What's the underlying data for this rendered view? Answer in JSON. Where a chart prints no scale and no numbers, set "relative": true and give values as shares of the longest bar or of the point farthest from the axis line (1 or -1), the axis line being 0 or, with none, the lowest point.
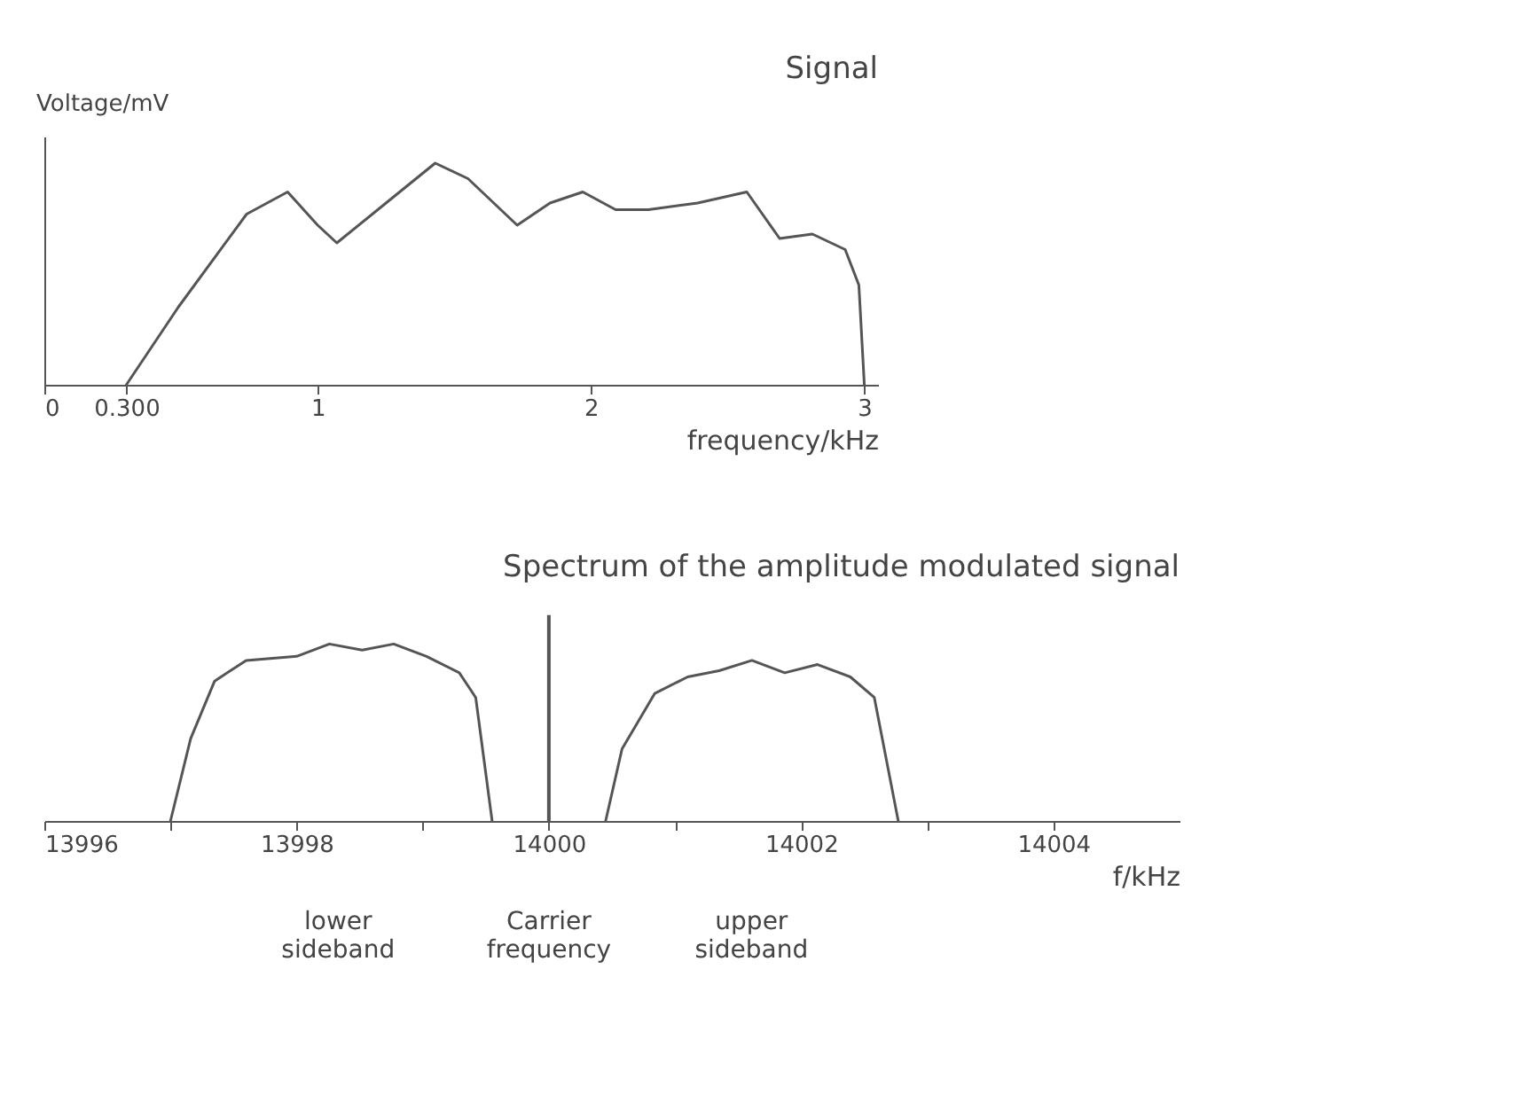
{
  "chart_data": [
    {
      "type": "line",
      "title": "Signal",
      "ylabel": "Voltage/mV",
      "xlabel": "frequency/kHz",
      "relative": true,
      "grid": false,
      "marker": "none",
      "line_style": "solid",
      "xlim": [
        0,
        3.05
      ],
      "xticks": [
        0,
        {
          "value": 0.3,
          "label": "0.300"
        },
        1,
        2,
        3
      ],
      "series": [
        {
          "color": "#555555",
          "x": [
            0.3,
            0.49,
            0.74,
            0.89,
            1.0,
            1.07,
            1.25,
            1.43,
            1.55,
            1.73,
            1.85,
            1.97,
            2.09,
            2.21,
            2.39,
            2.57,
            2.69,
            2.81,
            2.93,
            2.98,
            3.0
          ],
          "values": [
            0,
            0.35,
            0.77,
            0.87,
            0.72,
            0.64,
            0.82,
            1,
            0.93,
            0.72,
            0.82,
            0.87,
            0.79,
            0.79,
            0.82,
            0.87,
            0.66,
            0.68,
            0.61,
            0.45,
            0
          ]
        }
      ]
    },
    {
      "type": "line",
      "title": "Spectrum of the amplitude modulated signal",
      "xlabel": "f/kHz",
      "relative": true,
      "grid": false,
      "marker": "none",
      "line_style": "solid",
      "tick_labels": "x",
      "xlim": [
        13996,
        14005
      ],
      "xticks": [
        13996,
        {
          "value": 13997,
          "label": null
        },
        13998,
        {
          "value": 13999,
          "label": null
        },
        14000,
        {
          "value": 14001,
          "label": null
        },
        14002,
        {
          "value": 14003,
          "label": null
        },
        14004
      ],
      "series": [
        {
          "color": "#555555",
          "x": [
            13997.0,
            13997.16,
            13997.35,
            13997.6,
            13998.0,
            13998.26,
            13998.52,
            13998.77,
            13999.03,
            13999.29,
            13999.42,
            13999.55
          ],
          "values": [
            0,
            0.4,
            0.68,
            0.78,
            0.8,
            0.86,
            0.83,
            0.86,
            0.8,
            0.72,
            0.6,
            0
          ]
        },
        {
          "type": "bar",
          "color": "#555555",
          "x": [
            14000
          ],
          "values": [
            1
          ]
        },
        {
          "color": "#555555",
          "x": [
            14000.45,
            14000.58,
            14000.84,
            14001.1,
            14001.35,
            14001.61,
            14001.87,
            14002.13,
            14002.39,
            14002.58,
            14002.77
          ],
          "values": [
            0,
            0.35,
            0.62,
            0.7,
            0.73,
            0.78,
            0.72,
            0.76,
            0.7,
            0.6,
            0
          ]
        }
      ],
      "annotations": [
        "lower sideband",
        "Carrier frequency",
        "upper sideband"
      ]
    }
  ]
}
